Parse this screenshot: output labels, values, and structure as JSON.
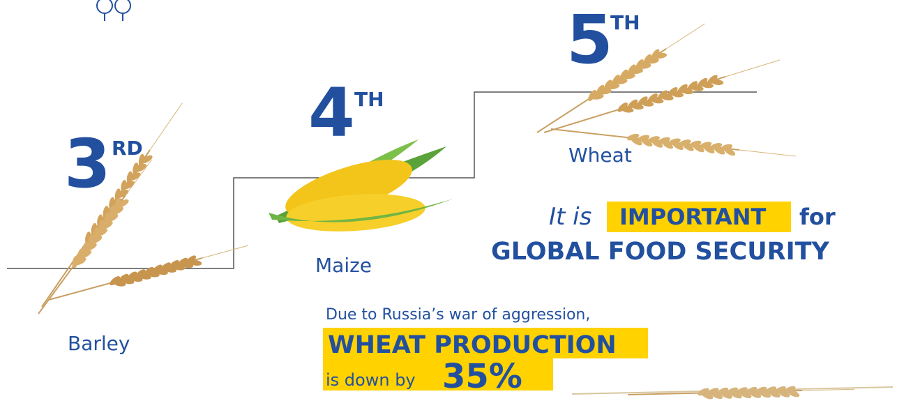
{
  "ranks": [
    {
      "rank": 3,
      "suffix": "RD",
      "crop": "Barley"
    },
    {
      "rank": 4,
      "suffix": "TH",
      "crop": "Maize"
    },
    {
      "rank": 5,
      "suffix": "TH",
      "crop": "Wheat"
    }
  ],
  "importance": {
    "lead": "It is",
    "highlight": "IMPORTANT",
    "trail": "for",
    "subject": "GLOBAL FOOD SECURITY"
  },
  "impact": {
    "intro": "Due to Russia’s war of aggression,",
    "highlight": "WHEAT PRODUCTION",
    "phrase": "is down by",
    "figure": "35%"
  }
}
